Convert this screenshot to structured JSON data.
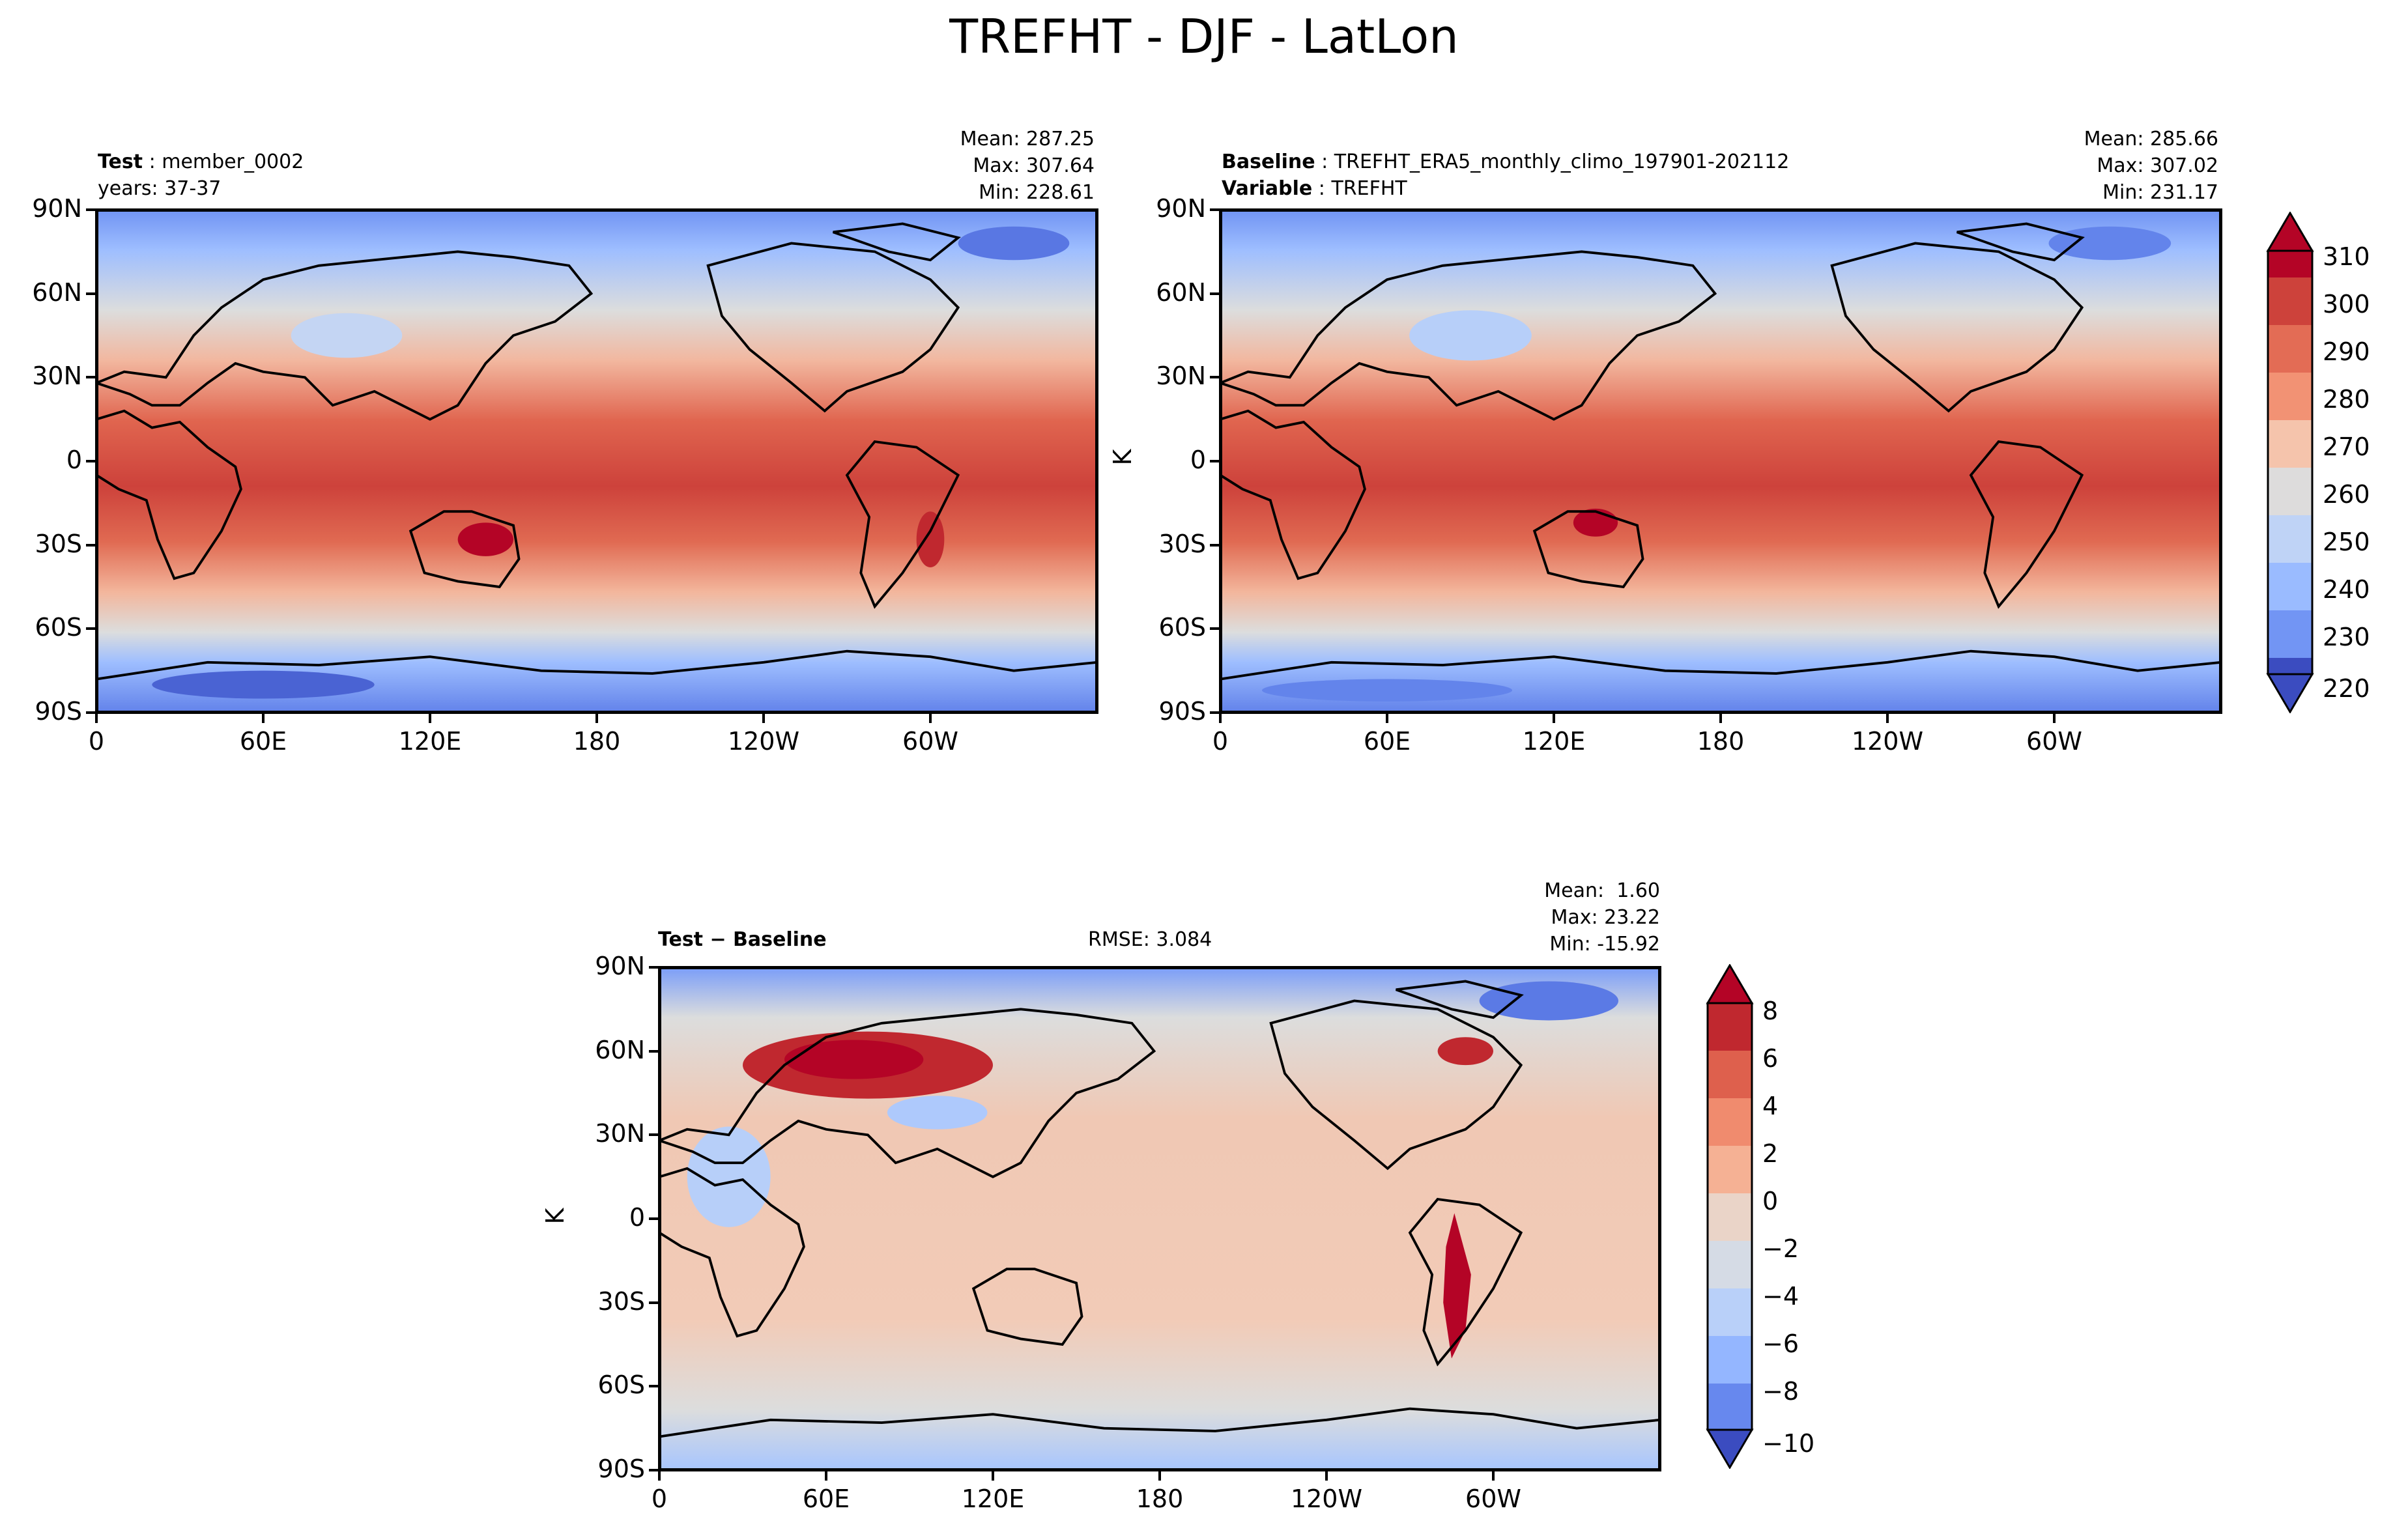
{
  "title": "TREFHT - DJF - LatLon",
  "chart_data": [
    {
      "type": "heatmap",
      "panel": "test",
      "label_bold": "Test",
      "label_value": "member_0002",
      "years": "years: 37-37",
      "stats": {
        "mean": "Mean: 287.25",
        "max": "Max: 307.64",
        "min": "Min: 228.61"
      },
      "x_ticks": [
        "0",
        "60E",
        "120E",
        "180",
        "120W",
        "60W"
      ],
      "y_ticks": [
        "90N",
        "60N",
        "30N",
        "0",
        "30S",
        "60S",
        "90S"
      ],
      "units": "K"
    },
    {
      "type": "heatmap",
      "panel": "baseline",
      "label_bold": "Baseline",
      "label_value": "TREFHT_ERA5_monthly_climo_197901-202112",
      "label2_bold": "Variable",
      "label2_value": "TREFHT",
      "stats": {
        "mean": "Mean: 285.66",
        "max": "Max: 307.02",
        "min": "Min: 231.17"
      },
      "x_ticks": [
        "0",
        "60E",
        "120E",
        "180",
        "120W",
        "60W"
      ],
      "y_ticks": [
        "90N",
        "60N",
        "30N",
        "0",
        "30S",
        "60S",
        "90S"
      ],
      "colorbar": {
        "units": "K",
        "ticks": [
          "310",
          "300",
          "290",
          "280",
          "270",
          "260",
          "250",
          "240",
          "230",
          "220"
        ],
        "range": [
          220,
          315
        ]
      }
    },
    {
      "type": "heatmap",
      "panel": "difference",
      "label": "Test − Baseline",
      "rmse": "RMSE: 3.084",
      "stats": {
        "mean": "Mean:  1.60",
        "max": "Max: 23.22",
        "min": "Min: -15.92"
      },
      "x_ticks": [
        "0",
        "60E",
        "120E",
        "180",
        "120W",
        "60W"
      ],
      "y_ticks": [
        "90N",
        "60N",
        "30N",
        "0",
        "30S",
        "60S",
        "90S"
      ],
      "colorbar": {
        "units": "K",
        "ticks": [
          "8",
          "6",
          "4",
          "2",
          "0",
          "−2",
          "−4",
          "−6",
          "−8",
          "−10"
        ],
        "range": [
          -10,
          9
        ]
      }
    }
  ],
  "colors": {
    "warm_dark": "#b40426",
    "warm": "#d1493f",
    "warm_mid": "#e67f5f",
    "warm_light": "#f4b99f",
    "neutral": "#dddcdc",
    "cool_light": "#b7cff9",
    "cool": "#8db0fe",
    "cool_mid": "#6384eb",
    "cool_dark": "#3b4cc0"
  }
}
